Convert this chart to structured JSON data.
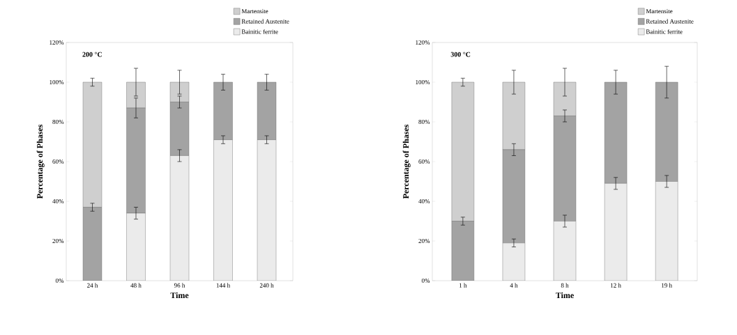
{
  "chart_data": [
    {
      "type": "bar",
      "stacked": true,
      "xlabel": "Time",
      "ylabel": "Percentage of Phases",
      "annotations": [
        "200 °C"
      ],
      "categories": [
        "24 h",
        "48 h",
        "96 h",
        "144 h",
        "240 h"
      ],
      "series": [
        {
          "name": "Bainitic ferrite",
          "color": "#ebebeb",
          "values": [
            0,
            34,
            63,
            71,
            71
          ],
          "errors": [
            null,
            3,
            3,
            2,
            2
          ]
        },
        {
          "name": "Retained Austenite",
          "color": "#a3a3a3",
          "values": [
            37,
            53,
            27,
            29,
            29
          ],
          "errors": [
            2,
            5,
            3,
            4,
            4
          ]
        },
        {
          "name": "Martensite",
          "color": "#cfcfcf",
          "values": [
            63,
            13,
            10,
            0,
            0
          ],
          "errors": [
            2,
            7,
            6,
            null,
            null
          ]
        }
      ],
      "ylim": [
        0,
        120
      ],
      "yticks": [
        {
          "value": 0,
          "label": "0%"
        },
        {
          "value": 20,
          "label": "20%"
        },
        {
          "value": 40,
          "label": "40%"
        },
        {
          "value": 60,
          "label": "60%"
        },
        {
          "value": 80,
          "label": "80%"
        },
        {
          "value": 100,
          "label": "100%"
        },
        {
          "value": 120,
          "label": "120%"
        }
      ],
      "legend": "top right",
      "grid": false
    },
    {
      "type": "bar",
      "stacked": true,
      "xlabel": "Time",
      "ylabel": "Percentage of Phases",
      "annotations": [
        "300 °C"
      ],
      "categories": [
        "1 h",
        "4 h",
        "8 h",
        "12 h",
        "19 h"
      ],
      "series": [
        {
          "name": "Bainitic ferrite",
          "color": "#ebebeb",
          "values": [
            0,
            19,
            30,
            49,
            50
          ],
          "errors": [
            null,
            2,
            3,
            3,
            3
          ]
        },
        {
          "name": "Retained Austenite",
          "color": "#a3a3a3",
          "values": [
            30,
            47,
            53,
            51,
            50
          ],
          "errors": [
            2,
            3,
            3,
            6,
            8
          ]
        },
        {
          "name": "Martensite",
          "color": "#cfcfcf",
          "values": [
            70,
            34,
            17,
            0,
            0
          ],
          "errors": [
            2,
            6,
            7,
            null,
            null
          ]
        }
      ],
      "ylim": [
        0,
        120
      ],
      "yticks": [
        {
          "value": 0,
          "label": "0%"
        },
        {
          "value": 20,
          "label": "20%"
        },
        {
          "value": 40,
          "label": "40%"
        },
        {
          "value": 60,
          "label": "60%"
        },
        {
          "value": 80,
          "label": "80%"
        },
        {
          "value": 100,
          "label": "100%"
        },
        {
          "value": 120,
          "label": "120%"
        }
      ],
      "legend": "top right",
      "grid": false
    }
  ]
}
